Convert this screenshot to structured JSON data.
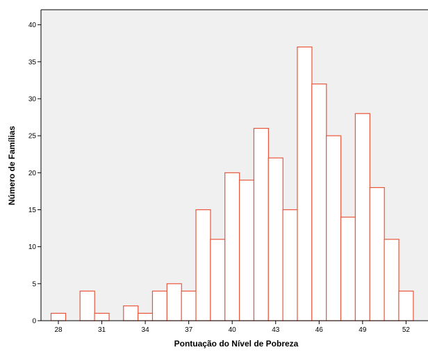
{
  "chart_data": {
    "type": "bar",
    "title": "",
    "xlabel": "Pontuação do Nível de Pobreza",
    "ylabel": "Número de Famílias",
    "bins": [
      {
        "x": 28,
        "count": 1
      },
      {
        "x": 29,
        "count": 0
      },
      {
        "x": 30,
        "count": 4
      },
      {
        "x": 31,
        "count": 1
      },
      {
        "x": 32,
        "count": 0
      },
      {
        "x": 33,
        "count": 2
      },
      {
        "x": 34,
        "count": 1
      },
      {
        "x": 35,
        "count": 4
      },
      {
        "x": 36,
        "count": 5
      },
      {
        "x": 37,
        "count": 4
      },
      {
        "x": 38,
        "count": 15
      },
      {
        "x": 39,
        "count": 11
      },
      {
        "x": 40,
        "count": 20
      },
      {
        "x": 41,
        "count": 19
      },
      {
        "x": 42,
        "count": 26
      },
      {
        "x": 43,
        "count": 22
      },
      {
        "x": 44,
        "count": 15
      },
      {
        "x": 45,
        "count": 37
      },
      {
        "x": 46,
        "count": 32
      },
      {
        "x": 47,
        "count": 25
      },
      {
        "x": 48,
        "count": 14
      },
      {
        "x": 49,
        "count": 28
      },
      {
        "x": 50,
        "count": 18
      },
      {
        "x": 51,
        "count": 11
      },
      {
        "x": 52,
        "count": 4
      }
    ],
    "xticks": [
      "28",
      "31",
      "34",
      "37",
      "40",
      "43",
      "46",
      "49",
      "52"
    ],
    "yticks": [
      "0",
      "5",
      "10",
      "15",
      "20",
      "25",
      "30",
      "35",
      "40"
    ],
    "ylim": [
      0,
      40
    ],
    "grid": false,
    "colors": {
      "bar_fill": "#ffffff",
      "bar_stroke": "#e8553a",
      "plot_background": "#f0f0f0",
      "axis": "#000000"
    }
  }
}
